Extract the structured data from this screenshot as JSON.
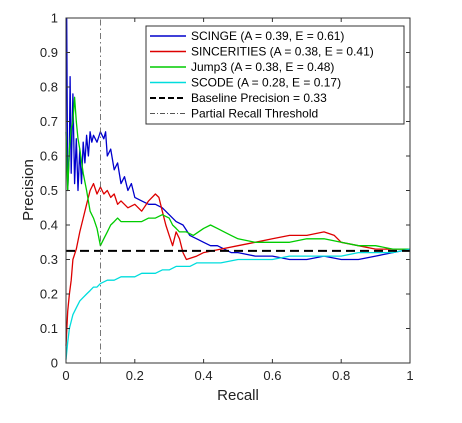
{
  "chart_data": {
    "type": "line",
    "title": "",
    "xlabel": "Recall",
    "ylabel": "Precision",
    "xlim": [
      0,
      1
    ],
    "ylim": [
      0,
      1
    ],
    "xticks": [
      "0",
      "0.2",
      "0.4",
      "0.6",
      "0.8",
      "1"
    ],
    "yticks": [
      "0",
      "0.1",
      "0.2",
      "0.3",
      "0.4",
      "0.5",
      "0.6",
      "0.7",
      "0.8",
      "0.9",
      "1"
    ],
    "grid": false,
    "legend_position": "top-right",
    "series": [
      {
        "name": "SCINGE (A = 0.39, E = 0.61)",
        "color": "#0000cc",
        "style": "solid",
        "points": [
          [
            0.002,
            1.0
          ],
          [
            0.005,
            0.5
          ],
          [
            0.01,
            0.62
          ],
          [
            0.012,
            0.83
          ],
          [
            0.015,
            0.55
          ],
          [
            0.02,
            0.78
          ],
          [
            0.025,
            0.52
          ],
          [
            0.03,
            0.65
          ],
          [
            0.035,
            0.5
          ],
          [
            0.04,
            0.62
          ],
          [
            0.045,
            0.52
          ],
          [
            0.05,
            0.64
          ],
          [
            0.055,
            0.58
          ],
          [
            0.06,
            0.66
          ],
          [
            0.065,
            0.6
          ],
          [
            0.07,
            0.67
          ],
          [
            0.075,
            0.64
          ],
          [
            0.08,
            0.66
          ],
          [
            0.09,
            0.64
          ],
          [
            0.1,
            0.67
          ],
          [
            0.11,
            0.65
          ],
          [
            0.115,
            0.67
          ],
          [
            0.12,
            0.6
          ],
          [
            0.13,
            0.62
          ],
          [
            0.14,
            0.56
          ],
          [
            0.15,
            0.58
          ],
          [
            0.16,
            0.52
          ],
          [
            0.17,
            0.54
          ],
          [
            0.18,
            0.5
          ],
          [
            0.19,
            0.52
          ],
          [
            0.2,
            0.48
          ],
          [
            0.22,
            0.47
          ],
          [
            0.24,
            0.46
          ],
          [
            0.26,
            0.46
          ],
          [
            0.28,
            0.45
          ],
          [
            0.3,
            0.43
          ],
          [
            0.32,
            0.41
          ],
          [
            0.34,
            0.4
          ],
          [
            0.36,
            0.37
          ],
          [
            0.38,
            0.36
          ],
          [
            0.4,
            0.35
          ],
          [
            0.42,
            0.34
          ],
          [
            0.44,
            0.34
          ],
          [
            0.46,
            0.33
          ],
          [
            0.48,
            0.32
          ],
          [
            0.5,
            0.32
          ],
          [
            0.55,
            0.31
          ],
          [
            0.6,
            0.31
          ],
          [
            0.65,
            0.3
          ],
          [
            0.7,
            0.3
          ],
          [
            0.75,
            0.31
          ],
          [
            0.8,
            0.3
          ],
          [
            0.85,
            0.3
          ],
          [
            0.9,
            0.31
          ],
          [
            0.95,
            0.32
          ],
          [
            1.0,
            0.33
          ]
        ]
      },
      {
        "name": "SINCERITIES (A = 0.38, E = 0.41)",
        "color": "#dd0000",
        "style": "solid",
        "points": [
          [
            0.0,
            0.05
          ],
          [
            0.005,
            0.15
          ],
          [
            0.01,
            0.2
          ],
          [
            0.015,
            0.24
          ],
          [
            0.02,
            0.3
          ],
          [
            0.03,
            0.33
          ],
          [
            0.04,
            0.38
          ],
          [
            0.05,
            0.42
          ],
          [
            0.06,
            0.46
          ],
          [
            0.07,
            0.5
          ],
          [
            0.08,
            0.52
          ],
          [
            0.09,
            0.49
          ],
          [
            0.1,
            0.51
          ],
          [
            0.11,
            0.49
          ],
          [
            0.12,
            0.5
          ],
          [
            0.13,
            0.48
          ],
          [
            0.14,
            0.49
          ],
          [
            0.15,
            0.46
          ],
          [
            0.16,
            0.47
          ],
          [
            0.18,
            0.45
          ],
          [
            0.2,
            0.46
          ],
          [
            0.22,
            0.44
          ],
          [
            0.24,
            0.47
          ],
          [
            0.26,
            0.49
          ],
          [
            0.27,
            0.48
          ],
          [
            0.28,
            0.44
          ],
          [
            0.29,
            0.4
          ],
          [
            0.3,
            0.37
          ],
          [
            0.31,
            0.34
          ],
          [
            0.32,
            0.38
          ],
          [
            0.33,
            0.36
          ],
          [
            0.34,
            0.32
          ],
          [
            0.35,
            0.3
          ],
          [
            0.38,
            0.31
          ],
          [
            0.4,
            0.32
          ],
          [
            0.45,
            0.33
          ],
          [
            0.5,
            0.34
          ],
          [
            0.55,
            0.35
          ],
          [
            0.6,
            0.36
          ],
          [
            0.65,
            0.37
          ],
          [
            0.7,
            0.37
          ],
          [
            0.75,
            0.38
          ],
          [
            0.78,
            0.37
          ],
          [
            0.8,
            0.35
          ],
          [
            0.85,
            0.34
          ],
          [
            0.9,
            0.33
          ],
          [
            0.95,
            0.33
          ],
          [
            1.0,
            0.33
          ]
        ]
      },
      {
        "name": "Jump3 (A = 0.38, E = 0.48)",
        "color": "#00cc00",
        "style": "solid",
        "points": [
          [
            0.0,
            0.67
          ],
          [
            0.005,
            0.5
          ],
          [
            0.01,
            0.62
          ],
          [
            0.015,
            0.68
          ],
          [
            0.02,
            0.7
          ],
          [
            0.025,
            0.77
          ],
          [
            0.03,
            0.7
          ],
          [
            0.035,
            0.65
          ],
          [
            0.04,
            0.62
          ],
          [
            0.05,
            0.55
          ],
          [
            0.06,
            0.5
          ],
          [
            0.07,
            0.44
          ],
          [
            0.08,
            0.42
          ],
          [
            0.09,
            0.39
          ],
          [
            0.1,
            0.34
          ],
          [
            0.11,
            0.36
          ],
          [
            0.12,
            0.38
          ],
          [
            0.13,
            0.4
          ],
          [
            0.14,
            0.41
          ],
          [
            0.15,
            0.42
          ],
          [
            0.16,
            0.41
          ],
          [
            0.18,
            0.41
          ],
          [
            0.2,
            0.41
          ],
          [
            0.22,
            0.41
          ],
          [
            0.24,
            0.42
          ],
          [
            0.26,
            0.42
          ],
          [
            0.28,
            0.43
          ],
          [
            0.3,
            0.42
          ],
          [
            0.31,
            0.4
          ],
          [
            0.32,
            0.39
          ],
          [
            0.33,
            0.38
          ],
          [
            0.35,
            0.38
          ],
          [
            0.37,
            0.37
          ],
          [
            0.4,
            0.39
          ],
          [
            0.42,
            0.4
          ],
          [
            0.44,
            0.39
          ],
          [
            0.46,
            0.38
          ],
          [
            0.48,
            0.37
          ],
          [
            0.5,
            0.36
          ],
          [
            0.55,
            0.35
          ],
          [
            0.6,
            0.35
          ],
          [
            0.65,
            0.35
          ],
          [
            0.7,
            0.36
          ],
          [
            0.75,
            0.36
          ],
          [
            0.8,
            0.35
          ],
          [
            0.85,
            0.34
          ],
          [
            0.9,
            0.34
          ],
          [
            0.95,
            0.33
          ],
          [
            1.0,
            0.33
          ]
        ]
      },
      {
        "name": "SCODE (A = 0.28, E = 0.17)",
        "color": "#00dddd",
        "style": "solid",
        "points": [
          [
            0.0,
            0.01
          ],
          [
            0.005,
            0.06
          ],
          [
            0.01,
            0.1
          ],
          [
            0.02,
            0.14
          ],
          [
            0.03,
            0.16
          ],
          [
            0.04,
            0.18
          ],
          [
            0.05,
            0.19
          ],
          [
            0.06,
            0.2
          ],
          [
            0.07,
            0.21
          ],
          [
            0.08,
            0.22
          ],
          [
            0.09,
            0.22
          ],
          [
            0.1,
            0.23
          ],
          [
            0.12,
            0.24
          ],
          [
            0.14,
            0.24
          ],
          [
            0.16,
            0.25
          ],
          [
            0.18,
            0.25
          ],
          [
            0.2,
            0.25
          ],
          [
            0.22,
            0.26
          ],
          [
            0.24,
            0.26
          ],
          [
            0.26,
            0.26
          ],
          [
            0.28,
            0.27
          ],
          [
            0.3,
            0.27
          ],
          [
            0.32,
            0.28
          ],
          [
            0.34,
            0.28
          ],
          [
            0.36,
            0.28
          ],
          [
            0.38,
            0.29
          ],
          [
            0.4,
            0.29
          ],
          [
            0.45,
            0.29
          ],
          [
            0.5,
            0.3
          ],
          [
            0.55,
            0.3
          ],
          [
            0.6,
            0.3
          ],
          [
            0.65,
            0.31
          ],
          [
            0.7,
            0.31
          ],
          [
            0.75,
            0.31
          ],
          [
            0.8,
            0.31
          ],
          [
            0.85,
            0.32
          ],
          [
            0.9,
            0.32
          ],
          [
            0.95,
            0.32
          ],
          [
            1.0,
            0.33
          ]
        ]
      },
      {
        "name": "Baseline Precision = 0.33",
        "color": "#000000",
        "style": "dashed",
        "points": [
          [
            0.0,
            0.325
          ],
          [
            1.0,
            0.325
          ]
        ]
      },
      {
        "name": "Partial Recall Threshold",
        "color": "#555555",
        "style": "dashdot",
        "points": [
          [
            0.1,
            0.0
          ],
          [
            0.1,
            1.0
          ]
        ]
      }
    ]
  }
}
